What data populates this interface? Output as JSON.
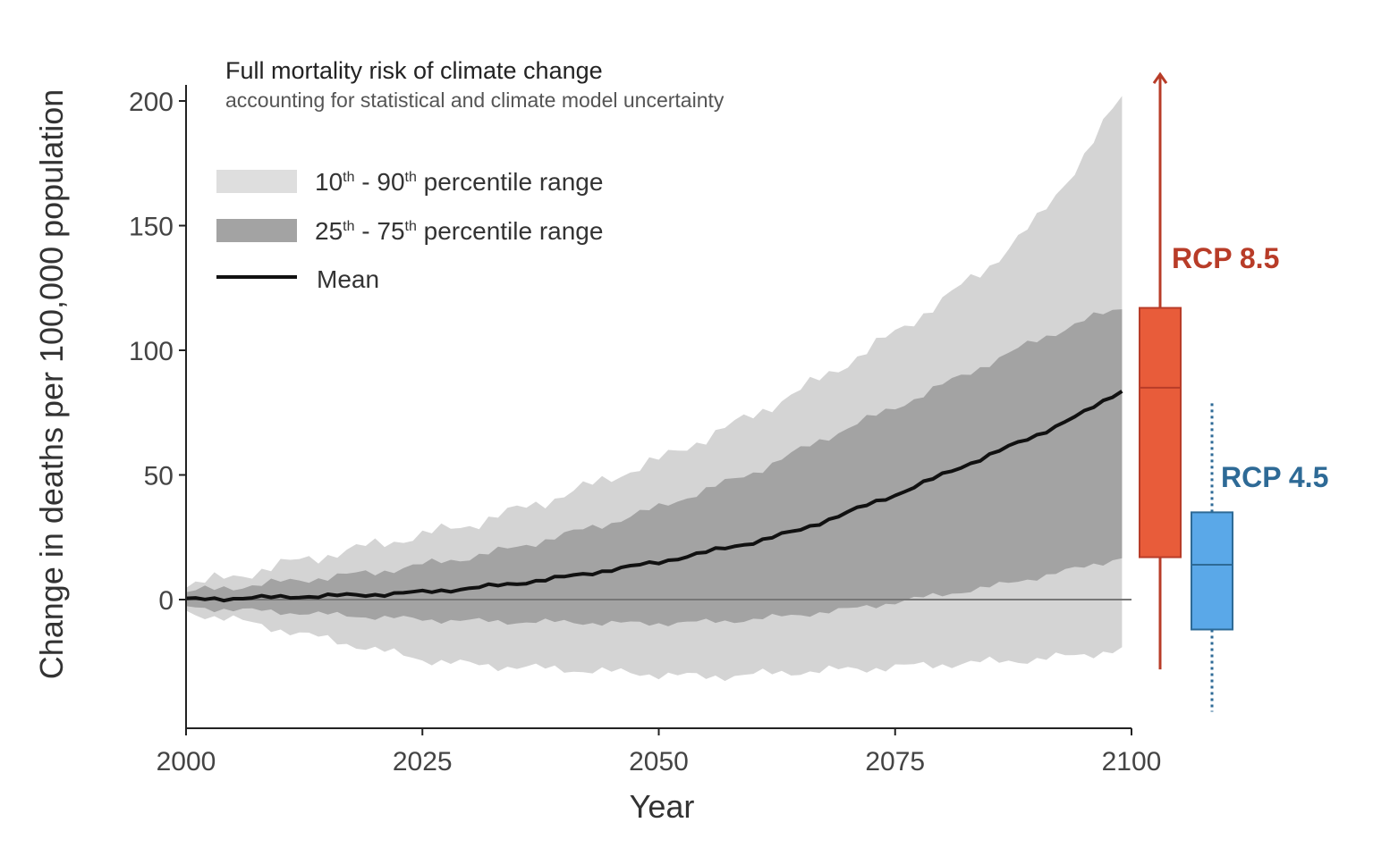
{
  "chart_data": {
    "type": "area",
    "title": "Full mortality risk of climate change",
    "subtitle": "accounting for statistical and climate model uncertainty",
    "xlabel": "Year",
    "ylabel": "Change in deaths per 100,000 population",
    "xlim": [
      2000,
      2100
    ],
    "ylim": [
      -50,
      200
    ],
    "x_ticks": [
      "2000",
      "2025",
      "2050",
      "2075",
      "2100"
    ],
    "y_ticks": [
      "0",
      "50",
      "100",
      "150",
      "200"
    ],
    "legend": [
      {
        "label_main_1": "10",
        "sup_1": "th",
        "label_main_2": " - 90",
        "sup_2": "th",
        "label_rest": " percentile range",
        "color": "#d4d4d4"
      },
      {
        "label_main_1": "25",
        "sup_1": "th",
        "label_main_2": " - 75",
        "sup_2": "th",
        "label_rest": " percentile range",
        "color": "#a3a3a3"
      },
      {
        "label": "Mean",
        "color": "#111111"
      }
    ],
    "legend_position": "top-left",
    "series": [
      {
        "x": [
          2000,
          2005,
          2010,
          2015,
          2020,
          2025,
          2030,
          2035,
          2040,
          2045,
          2050,
          2055,
          2060,
          2065,
          2070,
          2075,
          2080,
          2085,
          2090,
          2095,
          2099
        ],
        "p10": [
          -5,
          -8,
          -12,
          -16,
          -20,
          -24,
          -26,
          -27,
          -28,
          -29,
          -30,
          -31,
          -30,
          -29,
          -28,
          -27,
          -26,
          -25,
          -24,
          -22,
          -20
        ],
        "p25": [
          -3,
          -4,
          -5,
          -6,
          -7,
          -8,
          -8.5,
          -9,
          -9,
          -9.5,
          -9.5,
          -9,
          -8,
          -6,
          -4,
          -1,
          2,
          5,
          9,
          13,
          17
        ],
        "mean": [
          0,
          0.5,
          1,
          1.5,
          2,
          3,
          4.5,
          6.5,
          9,
          12,
          15,
          19,
          23,
          28,
          35,
          42,
          50,
          58,
          66,
          75,
          84
        ],
        "p75": [
          3,
          5,
          7,
          9,
          11,
          14,
          17,
          21,
          26,
          31,
          37,
          44,
          51,
          60,
          69,
          77,
          86,
          95,
          104,
          112,
          117
        ],
        "p90": [
          6,
          9,
          14,
          18,
          22,
          26,
          30,
          36,
          42,
          49,
          56,
          65,
          74,
          84,
          95,
          107,
          120,
          134,
          152,
          178,
          202
        ]
      }
    ],
    "boxplots": [
      {
        "name": "RCP 8.5",
        "color": "#e85c3a",
        "label_color": "#b83c28",
        "whisker_low": -28,
        "q1": 17,
        "median": 85,
        "q3": 117,
        "whisker_high": 210,
        "arrow_up": true
      },
      {
        "name": "RCP 4.5",
        "color": "#5aa8e8",
        "label_color": "#2e6a96",
        "whisker_low": -45,
        "q1": -12,
        "median": 14,
        "q3": 35,
        "whisker_high": 80
      }
    ]
  }
}
